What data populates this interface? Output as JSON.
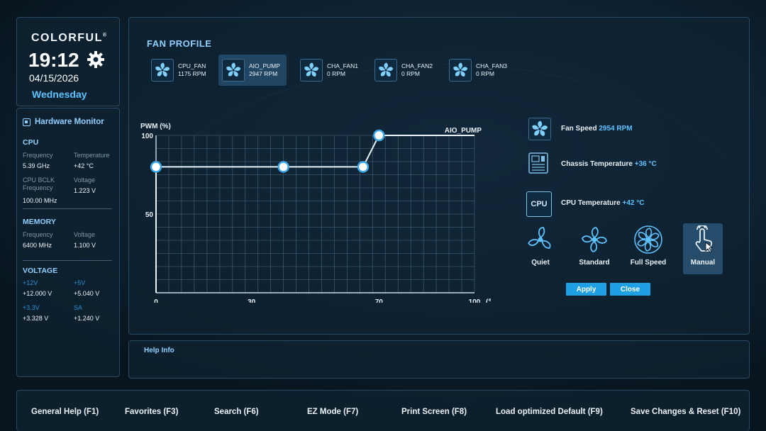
{
  "brand": "COLORFUL",
  "brand_mark": "®",
  "clock": {
    "time": "19:12",
    "date": "04/15/2026",
    "weekday": "Wednesday"
  },
  "hardware_monitor": {
    "title": "Hardware Monitor",
    "cpu": {
      "title": "CPU",
      "frequency_label": "Frequency",
      "frequency_value": "5.39 GHz",
      "temperature_label": "Temperature",
      "temperature_value": "+42 °C",
      "bclk_label_1": "CPU BCLK",
      "bclk_label_2": "Frequency",
      "bclk_value": "100.00 MHz",
      "voltage_label": "Voltage",
      "voltage_value": "1.223 V"
    },
    "memory": {
      "title": "MEMORY",
      "frequency_label": "Frequency",
      "frequency_value": "6400 MHz",
      "voltage_label": "Voltage",
      "voltage_value": "1.100 V"
    },
    "voltage": {
      "title": "VOLTAGE",
      "v12_label": "+12V",
      "v12_value": "+12.000 V",
      "v5_label": "+5V",
      "v5_value": "+5.040 V",
      "v33_label": "+3.3V",
      "v33_value": "+3.328 V",
      "sa_label": "SA",
      "sa_value": "+1.240 V"
    }
  },
  "fan_profile": {
    "title": "FAN PROFILE",
    "fans": [
      {
        "name": "CPU_FAN",
        "rpm": "1175 RPM",
        "active": false
      },
      {
        "name": "AIO_PUMP",
        "rpm": "2947 RPM",
        "active": true
      },
      {
        "name": "CHA_FAN1",
        "rpm": "0 RPM",
        "active": false
      },
      {
        "name": "CHA_FAN2",
        "rpm": "0 RPM",
        "active": false
      },
      {
        "name": "CHA_FAN3",
        "rpm": "0 RPM",
        "active": false
      }
    ]
  },
  "chart_data": {
    "type": "line",
    "series": [
      {
        "name": "AIO_PUMP",
        "x": [
          0,
          40,
          65,
          70,
          100
        ],
        "y": [
          80,
          80,
          80,
          100,
          100
        ]
      }
    ],
    "control_points": [
      {
        "x": 0,
        "y": 80
      },
      {
        "x": 40,
        "y": 80
      },
      {
        "x": 65,
        "y": 80
      },
      {
        "x": 70,
        "y": 100
      }
    ],
    "ylabel": "PWM (%)",
    "xlabel": "(℃)",
    "x_ticks": [
      "0",
      "30",
      "70",
      "100"
    ],
    "x_tick_values": [
      0,
      30,
      70,
      100
    ],
    "y_ticks": [
      "100",
      "50"
    ],
    "y_tick_values": [
      100,
      50
    ],
    "xlim": [
      0,
      100
    ],
    "ylim": [
      0,
      100
    ],
    "grid": true,
    "accent_color": "#e9f4fc"
  },
  "status": {
    "fan_speed_label": "Fan Speed",
    "fan_speed_value": "2954 RPM",
    "chassis_temp_label": "Chassis Temperature",
    "chassis_temp_value": "+36 °C",
    "cpu_temp_label": "CPU Temperature",
    "cpu_temp_value": "+42 °C",
    "cpu_icon_text": "CPU"
  },
  "modes": [
    {
      "label": "Quiet",
      "icon": "fan-quiet-icon",
      "active": false
    },
    {
      "label": "Standard",
      "icon": "fan-standard-icon",
      "active": false
    },
    {
      "label": "Full Speed",
      "icon": "fan-full-speed-icon",
      "active": false
    },
    {
      "label": "Manual",
      "icon": "hand-pointer-icon",
      "active": true
    }
  ],
  "buttons": {
    "apply": "Apply",
    "close": "Close"
  },
  "help": {
    "title": "Help Info"
  },
  "footer": [
    {
      "label": "General Help (F1)"
    },
    {
      "label": "Favorites (F3)"
    },
    {
      "label": "Search (F6)"
    },
    {
      "label": "EZ Mode (F7)"
    },
    {
      "label": "Print Screen (F8)"
    },
    {
      "label": "Load optimized Default (F9)"
    },
    {
      "label": "Save Changes & Reset (F10)"
    }
  ],
  "colors": {
    "accent": "#5ec2ff",
    "button": "#1e9fe6",
    "panel": "#0e2232"
  }
}
